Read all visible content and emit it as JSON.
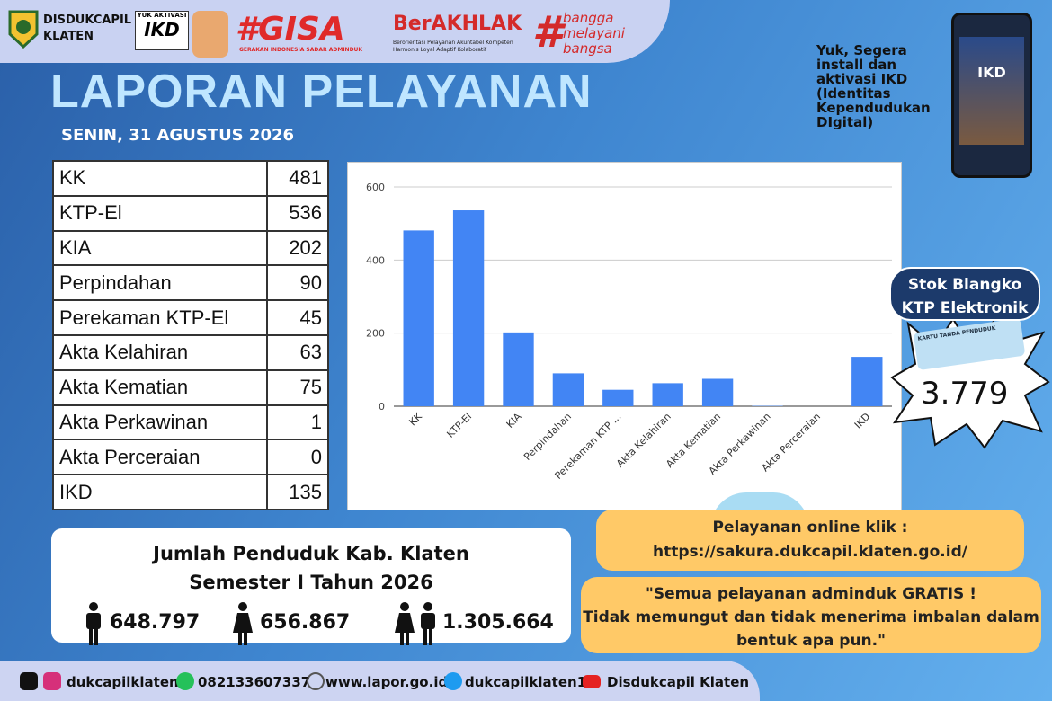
{
  "header": {
    "org": [
      "DISDUKCAPIL",
      "KLATEN"
    ],
    "ikd_badge": [
      "YUK AKTIVASI",
      "IKD"
    ],
    "gisa": "#GISA",
    "gisa_sub": "GERAKAN INDONESIA SADAR ADMINDUK",
    "berakhlak": "BerAKHLAK",
    "berakhlak_sub": "Berorientasi Pelayanan Akuntabel Kompeten Harmonis Loyal Adaptif Kolaboratif",
    "hash": "#",
    "bangga": [
      "bangga",
      "melayani",
      "bangsa"
    ]
  },
  "title": "LAPORAN PELAYANAN",
  "date": "SENIN, 31 AGUSTUS 2026",
  "promo": {
    "text": "Yuk, Segera install dan aktivasi IKD (Identitas Kependudukan DIgital)",
    "phone": "IKD"
  },
  "table": {
    "rows": [
      [
        "KK",
        481
      ],
      [
        "KTP-El",
        536
      ],
      [
        "KIA",
        202
      ],
      [
        "Perpindahan",
        90
      ],
      [
        "Perekaman KTP-El",
        45
      ],
      [
        "Akta Kelahiran",
        63
      ],
      [
        "Akta Kematian",
        75
      ],
      [
        "Akta Perkawinan",
        1
      ],
      [
        "Akta Perceraian",
        0
      ],
      [
        "IKD",
        135
      ]
    ]
  },
  "chart_data": {
    "type": "bar",
    "categories": [
      "KK",
      "KTP-El",
      "KIA",
      "Perpindahan",
      "Perekaman KTP ...",
      "Akta Kelahiran",
      "Akta Kematian",
      "Akta Perkawinan",
      "Akta Perceraian",
      "IKD"
    ],
    "values": [
      481,
      536,
      202,
      90,
      45,
      63,
      75,
      1,
      0,
      135
    ],
    "color": "#4285f4",
    "ylim": [
      0,
      600
    ],
    "yticks": [
      0,
      200,
      400,
      600
    ],
    "grid": true
  },
  "stock": {
    "title": [
      "Stok Blangko",
      "KTP Elektronik"
    ],
    "card": "KARTU TANDA PENDUDUK",
    "value": "3.779"
  },
  "population": {
    "title": "Jumlah Penduduk Kab. Klaten",
    "subtitle": "Semester I Tahun 2026",
    "male": "648.797",
    "female": "656.867",
    "total": "1.305.664"
  },
  "online": {
    "label": "Pelayanan online klik :",
    "url": "https://sakura.dukcapil.klaten.go.id/"
  },
  "quote": [
    "\"Semua pelayanan adminduk GRATIS !",
    "Tidak memungut dan tidak menerima imbalan dalam",
    "bentuk apa pun.\""
  ],
  "footer": [
    "dukcapilklaten",
    "082133607337",
    "www.lapor.go.id",
    "dukcapilklaten1",
    "Disdukcapil Klaten"
  ]
}
